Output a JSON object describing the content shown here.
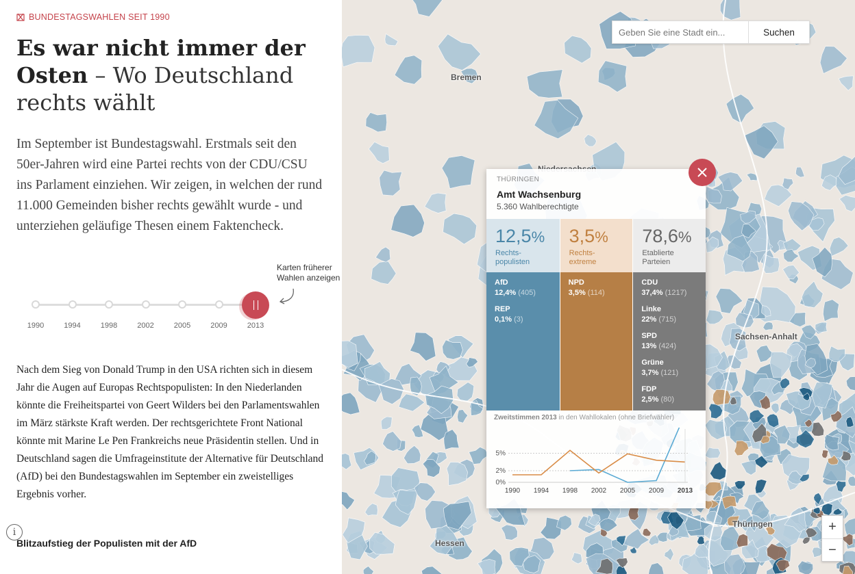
{
  "article": {
    "kicker": "BUNDESTAGSWAHLEN SEIT 1990",
    "headline_bold_1": "Es war nicht immer der",
    "headline_bold_2": "Osten",
    "headline_light": " – Wo Deutschland rechts wählt",
    "lead": "Im September ist Bundestagswahl. Erstmals seit den 50er-Jahren wird eine Partei rechts von der CDU/CSU ins Parlament einziehen. Wir zeigen, in welchen der rund 11.000 Gemeinden bisher rechts gewählt wurde - und unterziehen geläufige Thesen einem Faktencheck.",
    "body": "Nach dem Sieg von Donald Trump in den USA richten sich in diesem Jahr die Augen auf Europas Rechtspopulisten: In den Niederlanden könnte die Freiheitspartei von Geert Wilders bei den Parlamentswahlen im März stärkste Kraft werden. Der rechtsgerichtete Front National könnte mit Marine Le Pen Frankreichs neue Präsidentin stellen. Und in Deutschland sagen die Umfrageinstitute der Alternative für Deutschland (AfD) bei den Bundestagswahlen im September ein zweistelliges Ergebnis vorher.",
    "subhead": "Blitzaufstieg der Populisten mit der AfD",
    "info_icon": "info-icon"
  },
  "timeline": {
    "hint_line1": "Karten früherer",
    "hint_line2": "Wahlen anzeigen",
    "years": [
      "1990",
      "1994",
      "1998",
      "2002",
      "2005",
      "2009",
      "2013"
    ],
    "selected": "2013"
  },
  "map": {
    "cities": [
      "Bremen",
      "Niedersachsen",
      "Sachsen-Anhalt",
      "Thüringen",
      "Hessen"
    ],
    "search": {
      "placeholder": "Geben Sie eine Stadt ein...",
      "button": "Suchen"
    },
    "zoom_in": "+",
    "zoom_out": "−"
  },
  "popup": {
    "state": "THÜRINGEN",
    "name": "Amt Wachsenburg",
    "voters": "5.360 Wahlberechtigte",
    "columns": [
      {
        "pct": "12,5",
        "sym": "%",
        "label1": "Rechts-",
        "label2": "populisten",
        "parties": [
          {
            "name": "AfD",
            "value": "12,4%",
            "count": "(405)"
          },
          {
            "name": "REP",
            "value": "0,1%",
            "count": "(3)"
          }
        ]
      },
      {
        "pct": "3,5",
        "sym": "%",
        "label1": "Rechts-",
        "label2": "extreme",
        "parties": [
          {
            "name": "NPD",
            "value": "3,5%",
            "count": "(114)"
          }
        ]
      },
      {
        "pct": "78,6",
        "sym": "%",
        "label1": "Etablierte",
        "label2": "Parteien",
        "parties": [
          {
            "name": "CDU",
            "value": "37,4%",
            "count": "(1217)"
          },
          {
            "name": "Linke",
            "value": "22%",
            "count": "(715)"
          },
          {
            "name": "SPD",
            "value": "13%",
            "count": "(424)"
          },
          {
            "name": "Grüne",
            "value": "3,7%",
            "count": "(121)"
          },
          {
            "name": "FDP",
            "value": "2,5%",
            "count": "(80)"
          }
        ]
      }
    ],
    "chart_caption_bold": "Zweitstimmen 2013",
    "chart_caption_rest": " in den Wahllokalen (ohne Briefwähler)",
    "colors": {
      "rechtspopulisten": "#5a8eab",
      "rechtsextreme": "#b67f46",
      "etabliert": "#7b7b7b",
      "accent": "#c84a55"
    }
  },
  "chart_data": {
    "type": "line",
    "x": [
      "1990",
      "1994",
      "1998",
      "2002",
      "2005",
      "2009",
      "2013"
    ],
    "y_ticks": [
      "0%",
      "2%",
      "5%"
    ],
    "ylim": [
      0,
      8
    ],
    "series": [
      {
        "color": "#5aaad4",
        "values": [
          null,
          null,
          2.0,
          2.2,
          0.0,
          0.3,
          12.5
        ]
      },
      {
        "color": "#d98c46",
        "values": [
          1.3,
          1.3,
          5.5,
          1.6,
          4.9,
          3.8,
          3.5
        ]
      }
    ]
  }
}
